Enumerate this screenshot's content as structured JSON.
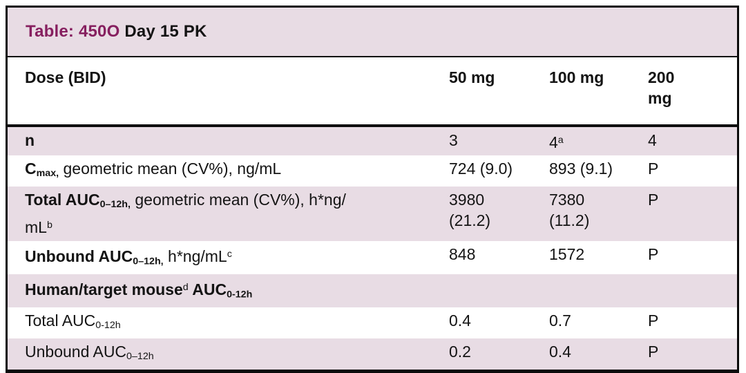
{
  "colors": {
    "row_shade": "#e8dce4",
    "title_accent": "#861f5f",
    "border": "#0b0b0b",
    "text": "#141414"
  },
  "title": {
    "highlight": "Table: 450O",
    "rest": " Day 15 PK"
  },
  "header": {
    "dose_label": [
      {
        "t": "Dose (BID)",
        "b": true
      }
    ],
    "dose_columns": [
      [
        {
          "t": "50 mg",
          "b": true
        }
      ],
      [
        {
          "t": "100 mg",
          "b": true
        }
      ],
      [
        {
          "t": "200",
          "b": true
        },
        {
          "br": true
        },
        {
          "t": "mg",
          "b": true
        }
      ]
    ]
  },
  "rows": [
    {
      "shaded": true,
      "label": [
        {
          "t": "n",
          "b": true
        }
      ],
      "values": [
        [
          {
            "t": "3"
          }
        ],
        [
          {
            "t": "4"
          },
          {
            "t": "a",
            "sup": true
          }
        ],
        [
          {
            "t": "4"
          }
        ]
      ]
    },
    {
      "shaded": false,
      "label": [
        {
          "t": "C",
          "b": true
        },
        {
          "t": "max,",
          "b": true,
          "sub": true
        },
        {
          "t": " geometric mean (CV%), ng/mL"
        }
      ],
      "values": [
        [
          {
            "t": "724 (9.0)"
          }
        ],
        [
          {
            "t": "893 (9.1)"
          }
        ],
        [
          {
            "t": "P"
          }
        ]
      ]
    },
    {
      "shaded": true,
      "label": [
        {
          "t": "Total AUC",
          "b": true
        },
        {
          "t": "0–12h,",
          "b": true,
          "sub": true
        },
        {
          "t": " geometric mean (CV%), h*ng/"
        },
        {
          "br": true
        },
        {
          "t": "mL"
        },
        {
          "t": "b",
          "sup": true
        }
      ],
      "values": [
        [
          {
            "t": "3980"
          },
          {
            "br": true
          },
          {
            "t": "(21.2)"
          }
        ],
        [
          {
            "t": "7380"
          },
          {
            "br": true
          },
          {
            "t": "(11.2)"
          }
        ],
        [
          {
            "t": "P"
          }
        ]
      ]
    },
    {
      "shaded": false,
      "label": [
        {
          "t": "Unbound AUC",
          "b": true
        },
        {
          "t": "0–12h,",
          "b": true,
          "sub": true
        },
        {
          "t": " h*ng/mL"
        },
        {
          "t": "c",
          "sup": true
        }
      ],
      "values": [
        [
          {
            "t": "848"
          }
        ],
        [
          {
            "t": "1572"
          }
        ],
        [
          {
            "t": "P"
          }
        ]
      ]
    },
    {
      "shaded": true,
      "label": [
        {
          "t": "Human/target mouse",
          "b": true
        },
        {
          "t": "d",
          "sup": true
        },
        {
          "t": " AUC",
          "b": true
        },
        {
          "t": "0-12h",
          "b": true,
          "sub": true
        }
      ],
      "values": [
        [],
        [],
        []
      ]
    },
    {
      "shaded": false,
      "label": [
        {
          "t": "Total AUC"
        },
        {
          "t": "0-12h",
          "sub": true
        }
      ],
      "values": [
        [
          {
            "t": "0.4"
          }
        ],
        [
          {
            "t": "0.7"
          }
        ],
        [
          {
            "t": "P"
          }
        ]
      ]
    },
    {
      "shaded": true,
      "label": [
        {
          "t": "Unbound AUC"
        },
        {
          "t": "0–12h",
          "sub": true
        }
      ],
      "values": [
        [
          {
            "t": "0.2"
          }
        ],
        [
          {
            "t": "0.4"
          }
        ],
        [
          {
            "t": "P"
          }
        ]
      ]
    }
  ]
}
